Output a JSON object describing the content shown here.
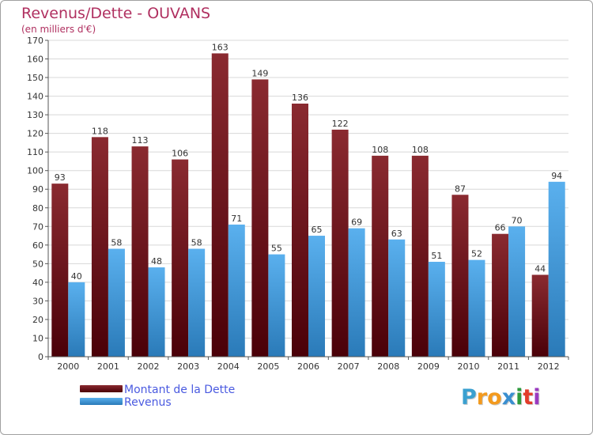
{
  "title": "Revenus/Dette - OUVANS",
  "subtitle": "(en milliers d'€)",
  "legend": {
    "debt_label": "Montant de la Dette",
    "revenue_label": "Revenus"
  },
  "logo": {
    "letters": [
      "P",
      "r",
      "o",
      "x",
      "i",
      "t",
      "i"
    ],
    "colors": [
      "#3aa0d0",
      "#f39a1e",
      "#f39a1e",
      "#3a8fd0",
      "#2e9a3c",
      "#e23c2a",
      "#9a3ac0"
    ]
  },
  "colors": {
    "debt_top": "#8a2a30",
    "debt_bottom": "#4a0008",
    "revenue_top": "#5ab0ee",
    "revenue_bottom": "#2a7ab8",
    "axis_text": "#333333",
    "grid": "#d8d8d8"
  },
  "chart_data": {
    "type": "bar",
    "title": "Revenus/Dette - OUVANS",
    "ylabel": "(en milliers d'€)",
    "xlabel": "",
    "ylim": [
      0,
      170
    ],
    "ytick_step": 10,
    "grid": true,
    "legend_position": "bottom-left",
    "categories": [
      "2000",
      "2001",
      "2002",
      "2003",
      "2004",
      "2005",
      "2006",
      "2007",
      "2008",
      "2009",
      "2010",
      "2011",
      "2012"
    ],
    "series": [
      {
        "name": "Montant de la Dette",
        "values": [
          93,
          118,
          113,
          106,
          163,
          149,
          136,
          122,
          108,
          108,
          87,
          66,
          44
        ]
      },
      {
        "name": "Revenus",
        "values": [
          40,
          58,
          48,
          58,
          71,
          55,
          65,
          69,
          63,
          51,
          52,
          70,
          94
        ]
      }
    ]
  }
}
